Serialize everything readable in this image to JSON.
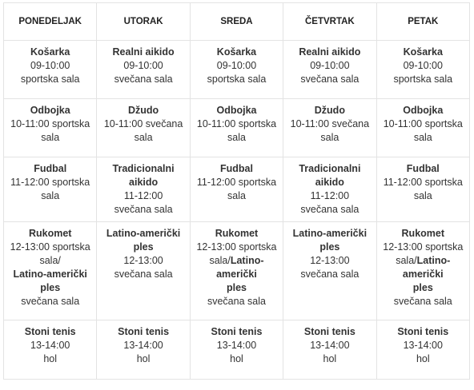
{
  "days": [
    "PONEDELJAK",
    "UTORAK",
    "SREDA",
    "ČETVRTAK",
    "PETAK"
  ],
  "rows": [
    [
      {
        "name": "Košarka",
        "time": "09-10:00",
        "place": "sportska sala"
      },
      {
        "name": "Realni aikido",
        "time": "09-10:00",
        "place": "svečana sala"
      },
      {
        "name": "Košarka",
        "time": "09-10:00",
        "place": "sportska sala"
      },
      {
        "name": "Realni aikido",
        "time": "09-10:00",
        "place": "svečana sala"
      },
      {
        "name": "Košarka",
        "time": "09-10:00",
        "place": "sportska sala"
      }
    ],
    [
      {
        "name": "Odbojka",
        "line1": "10-11:00 sportska",
        "line2": "sala"
      },
      {
        "name": "Džudo",
        "line1": "10-11:00 svečana",
        "line2": "sala"
      },
      {
        "name": "Odbojka",
        "line1": "10-11:00 sportska",
        "line2": "sala"
      },
      {
        "name": "Džudo",
        "line1": "10-11:00 svečana",
        "line2": "sala"
      },
      {
        "name": "Odbojka",
        "line1": "10-11:00 sportska",
        "line2": "sala"
      }
    ],
    [
      {
        "name": "Fudbal",
        "line1": "11-12:00 sportska",
        "line2": "sala"
      },
      {
        "name": "Tradicionalni aikido",
        "line1": "11-12:00",
        "line2": "svečana sala"
      },
      {
        "name": "Fudbal",
        "line1": "11-12:00 sportska",
        "line2": "sala"
      },
      {
        "name": "Tradicionalni aikido",
        "line1": "11-12:00",
        "line2": "svečana sala"
      },
      {
        "name": "Fudbal",
        "line1": "11-12:00 sportska",
        "line2": "sala"
      }
    ],
    [
      {
        "name": "Rukomet",
        "line1": "12-13:00 sportska",
        "line2": "sala/",
        "name2a": "Latino-američki",
        "name2b": "ples",
        "place2": "svečana sala"
      },
      {
        "name_a": "Latino-američki",
        "name_b": "ples",
        "time": "12-13:00",
        "place": "svečana sala"
      },
      {
        "name": "Rukomet",
        "line1": "12-13:00 sportska",
        "line2_plain": "sala/",
        "line2_bold": "Latino-američki",
        "name2b": "ples",
        "place2": "svečana sala"
      },
      {
        "name_a": "Latino-američki",
        "name_b": "ples",
        "time": "12-13:00",
        "place": "svečana sala"
      },
      {
        "name": "Rukomet",
        "line1": "12-13:00 sportska",
        "line2_plain": "sala/",
        "line2_bold": "Latino-američki",
        "name2b": "ples",
        "place2": "svečana sala"
      }
    ],
    [
      {
        "name": "Stoni tenis",
        "time": "13-14:00",
        "place": "hol"
      },
      {
        "name": "Stoni tenis",
        "time": "13-14:00",
        "place": "hol"
      },
      {
        "name": "Stoni tenis",
        "time": "13-14:00",
        "place": "hol"
      },
      {
        "name": "Stoni tenis",
        "time": "13-14:00",
        "place": "hol"
      },
      {
        "name": "Stoni tenis",
        "time": "13-14:00",
        "place": "hol"
      }
    ]
  ]
}
